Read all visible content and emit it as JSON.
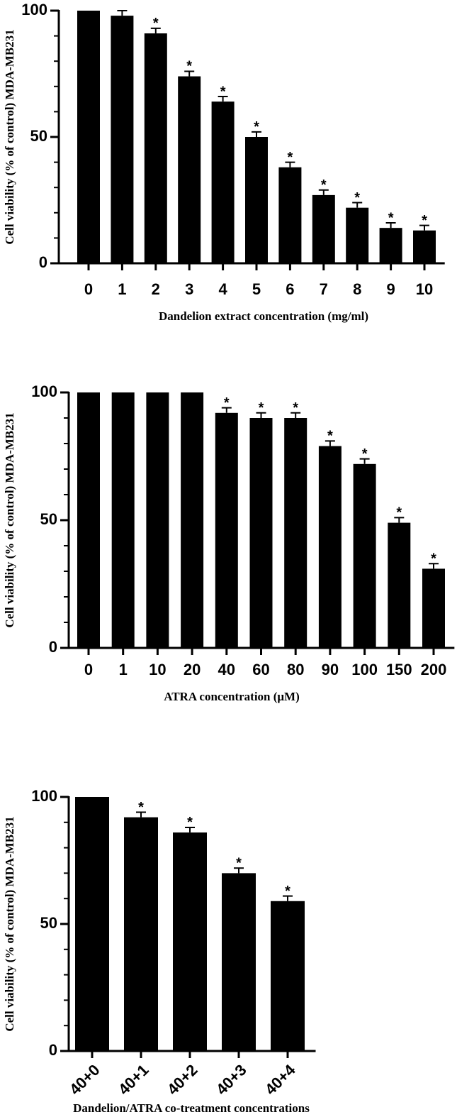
{
  "chart_data": [
    {
      "type": "bar",
      "x_label": "Dandelion extract concentration  (mg/ml)",
      "y_label": "Cell viability (% of control) MDA-MB231",
      "categories": [
        "0",
        "1",
        "2",
        "3",
        "4",
        "5",
        "6",
        "7",
        "8",
        "9",
        "10"
      ],
      "values": [
        100,
        98,
        91,
        74,
        64,
        50,
        38,
        27,
        22,
        14,
        13
      ],
      "errors": [
        null,
        2,
        2,
        2,
        2,
        2,
        2,
        2,
        2,
        2,
        2
      ],
      "annotations": [
        null,
        null,
        "*",
        "*",
        "*",
        "*",
        "*",
        "*",
        "*",
        "*",
        "*"
      ],
      "color": "#000000",
      "ylim": [
        0,
        100
      ],
      "yticks": [
        0,
        50,
        100
      ],
      "yminor_ticks": [
        10,
        20,
        30,
        40,
        60,
        70,
        80,
        90
      ]
    },
    {
      "type": "bar",
      "x_label": "ATRA concentration  (μM)",
      "y_label": "Cell viability (% of control) MDA-MB231",
      "categories": [
        "0",
        "1",
        "10",
        "20",
        "40",
        "60",
        "80",
        "90",
        "100",
        "150",
        "200"
      ],
      "values": [
        100,
        100,
        100,
        100,
        92,
        90,
        90,
        79,
        72,
        49,
        31
      ],
      "errors": [
        null,
        null,
        null,
        null,
        2,
        2,
        2,
        2,
        2,
        2,
        2
      ],
      "annotations": [
        null,
        null,
        null,
        null,
        "*",
        "*",
        "*",
        "*",
        "*",
        "*",
        "*"
      ],
      "color": "#000000",
      "ylim": [
        0,
        100
      ],
      "yticks": [
        0,
        50,
        100
      ],
      "yminor_ticks": [
        10,
        20,
        30,
        40,
        60,
        70,
        80,
        90
      ]
    },
    {
      "type": "bar",
      "x_label": "Dandelion/ATRA co-treatment concentrations",
      "y_label": "Cell viability (% of control) MDA-MB231",
      "categories": [
        "40+0",
        "40+1",
        "40+2",
        "40+3",
        "40+4"
      ],
      "values": [
        100,
        92,
        86,
        70,
        59
      ],
      "errors": [
        null,
        2,
        2,
        2,
        2
      ],
      "annotations": [
        null,
        "*",
        "*",
        "*",
        "*"
      ],
      "color": "#000000",
      "ylim": [
        0,
        100
      ],
      "yticks": [
        0,
        50,
        100
      ],
      "yminor_ticks": [
        10,
        20,
        30,
        40,
        60,
        70,
        80,
        90
      ]
    }
  ]
}
